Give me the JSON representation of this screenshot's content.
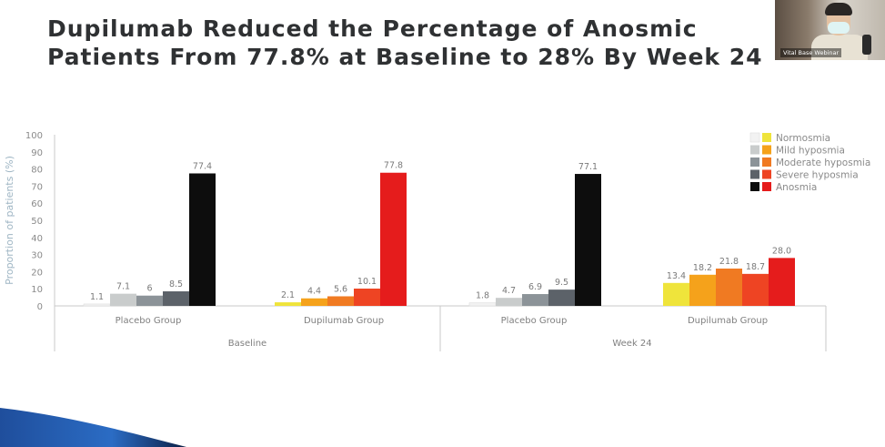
{
  "slide": {
    "title_line1": "Dupilumab Reduced the Percentage of Anosmic",
    "title_line2": "Patients From 77.8% at Baseline to 28% By Week 24"
  },
  "video": {
    "name": "Vital Base Webinar"
  },
  "chart_data": {
    "type": "bar",
    "ylabel": "Proportion of patients (%)",
    "ylim": [
      0,
      100
    ],
    "yticks": [
      0,
      10,
      20,
      30,
      40,
      50,
      60,
      70,
      80,
      90,
      100
    ],
    "grid": false,
    "legend_position": "top-right",
    "legend": [
      {
        "name": "Normosmia",
        "placebo_color": "#f2f2f2",
        "dupilumab_color": "#efe43b"
      },
      {
        "name": "Mild hyposmia",
        "placebo_color": "#c9cccc",
        "dupilumab_color": "#f5a21b"
      },
      {
        "name": "Moderate hyposmia",
        "placebo_color": "#8c9398",
        "dupilumab_color": "#f07a22"
      },
      {
        "name": "Severe hyposmia",
        "placebo_color": "#5c6269",
        "dupilumab_color": "#ee4423"
      },
      {
        "name": "Anosmia",
        "placebo_color": "#0d0d0d",
        "dupilumab_color": "#e51c1c"
      }
    ],
    "timepoints": [
      {
        "label": "Baseline",
        "groups": [
          {
            "label": "Placebo Group",
            "palette": "placebo",
            "values": [
              1.1,
              7.1,
              6,
              8.5,
              77.4
            ],
            "value_labels": [
              "1.1",
              "7.1",
              "6",
              "8.5",
              "77.4"
            ]
          },
          {
            "label": "Dupilumab Group",
            "palette": "dupilumab",
            "values": [
              2.1,
              4.4,
              5.6,
              10.1,
              77.8
            ],
            "value_labels": [
              "2.1",
              "4.4",
              "5.6",
              "10.1",
              "77.8"
            ]
          }
        ]
      },
      {
        "label": "Week 24",
        "groups": [
          {
            "label": "Placebo Group",
            "palette": "placebo",
            "values": [
              1.8,
              4.7,
              6.9,
              9.5,
              77.1
            ],
            "value_labels": [
              "1.8",
              "4.7",
              "6.9",
              "9.5",
              "77.1"
            ]
          },
          {
            "label": "Dupilumab Group",
            "palette": "dupilumab",
            "values": [
              13.4,
              18.2,
              21.8,
              18.7,
              28.0
            ],
            "value_labels": [
              "13.4",
              "18.2",
              "21.8",
              "18.7",
              "28.0"
            ]
          }
        ]
      }
    ]
  }
}
